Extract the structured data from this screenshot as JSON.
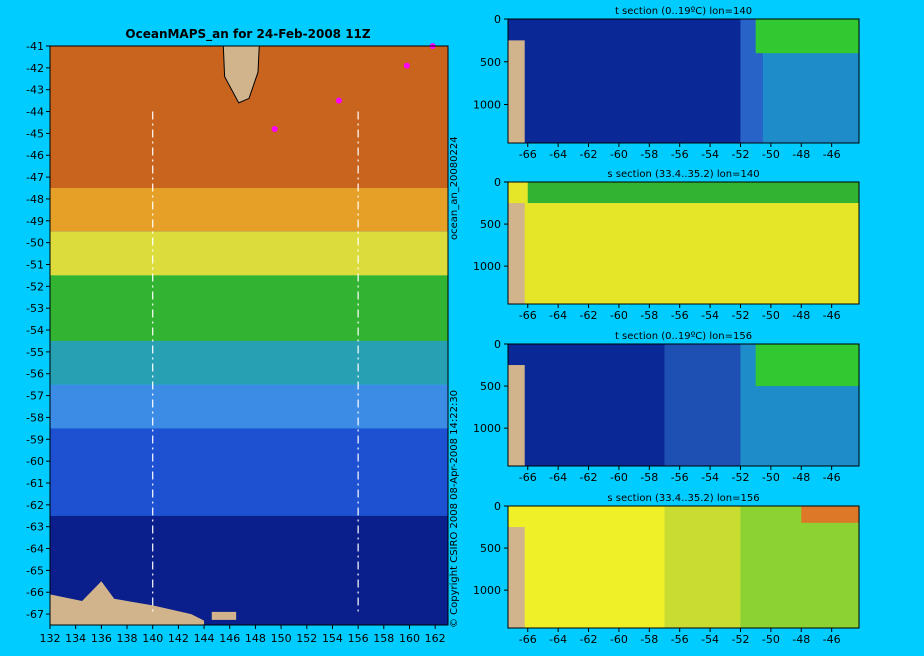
{
  "main_title": "OceanMAPS_an for 24-Feb-2008 11Z",
  "side_label_top": "ocean_an_20080224",
  "side_label_bottom": "© Copyright CSIRO 2008   08-Apr-2008 14:22:30",
  "colors": {
    "background": "#00ccff",
    "land": "#d2b48c",
    "contour": "#40e0d0",
    "highlight": "#ff00ff",
    "section_line": "#ffffff"
  },
  "chart_data": [
    {
      "type": "heatmap",
      "title": "OceanMAPS_an for 24-Feb-2008 11Z",
      "xlabel": "",
      "ylabel": "",
      "xlim": [
        132,
        163
      ],
      "ylim": [
        -67.5,
        -41
      ],
      "xticks": [
        132,
        134,
        136,
        138,
        140,
        142,
        144,
        146,
        148,
        150,
        152,
        154,
        156,
        158,
        160,
        162
      ],
      "yticks": [
        -41,
        -42,
        -43,
        -44,
        -45,
        -46,
        -47,
        -48,
        -49,
        -50,
        -51,
        -52,
        -53,
        -54,
        -55,
        -56,
        -57,
        -58,
        -59,
        -60,
        -61,
        -62,
        -63,
        -64,
        -65,
        -66,
        -67
      ],
      "section_lines_lon": [
        140,
        156
      ],
      "lat_bands": [
        {
          "lat_from": -41,
          "lat_to": -47.5,
          "color": "#c8641e"
        },
        {
          "lat_from": -47.5,
          "lat_to": -49.5,
          "color": "#e6a028"
        },
        {
          "lat_from": -49.5,
          "lat_to": -51.5,
          "color": "#dcdc3c"
        },
        {
          "lat_from": -51.5,
          "lat_to": -54.5,
          "color": "#32b432"
        },
        {
          "lat_from": -54.5,
          "lat_to": -56.5,
          "color": "#28a0b4"
        },
        {
          "lat_from": -56.5,
          "lat_to": -58.5,
          "color": "#3c8ce6"
        },
        {
          "lat_from": -58.5,
          "lat_to": -62.5,
          "color": "#1e50d2"
        },
        {
          "lat_from": -62.5,
          "lat_to": -67.5,
          "color": "#0a1e8c"
        }
      ]
    },
    {
      "type": "heatmap",
      "title": "t section (0..19ºC) lon=140",
      "xticks": [
        -66,
        -64,
        -62,
        -60,
        -58,
        -56,
        -54,
        -52,
        -50,
        -48,
        -46
      ],
      "yticks": [
        0,
        500,
        1000
      ],
      "xlim": [
        -67.3,
        -44.2
      ],
      "ylim": [
        1450,
        0
      ],
      "bands": [
        {
          "x_from": -67.3,
          "x_to": -52,
          "color": "#0a2896"
        },
        {
          "x_from": -52,
          "x_to": -50.5,
          "color": "#2864c8"
        },
        {
          "x_from": -50.5,
          "x_to": -44.2,
          "color": "#1e8cc8"
        }
      ],
      "surface": {
        "x_from": -51,
        "x_to": -44.2,
        "color": "#32c832",
        "depth_to": 400
      }
    },
    {
      "type": "heatmap",
      "title": "s section (33.4..35.2) lon=140",
      "xticks": [
        -66,
        -64,
        -62,
        -60,
        -58,
        -56,
        -54,
        -52,
        -50,
        -48,
        -46
      ],
      "yticks": [
        0,
        500,
        1000
      ],
      "xlim": [
        -67.3,
        -44.2
      ],
      "ylim": [
        1450,
        0
      ],
      "bands": [
        {
          "x_from": -67.3,
          "x_to": -44.2,
          "color": "#e6e628"
        }
      ],
      "surface": {
        "x_from": -66,
        "x_to": -44.2,
        "color": "#32b432",
        "depth_to": 250
      }
    },
    {
      "type": "heatmap",
      "title": "t section (0..19ºC) lon=156",
      "xticks": [
        -66,
        -64,
        -62,
        -60,
        -58,
        -56,
        -54,
        -52,
        -50,
        -48,
        -46
      ],
      "yticks": [
        0,
        500,
        1000
      ],
      "xlim": [
        -67.3,
        -44.2
      ],
      "ylim": [
        1450,
        0
      ],
      "bands": [
        {
          "x_from": -67.3,
          "x_to": -57,
          "color": "#0a2896"
        },
        {
          "x_from": -57,
          "x_to": -52,
          "color": "#1e50b4"
        },
        {
          "x_from": -52,
          "x_to": -44.2,
          "color": "#1e8cc8"
        }
      ],
      "surface": {
        "x_from": -51,
        "x_to": -44.2,
        "color": "#32c832",
        "depth_to": 500
      }
    },
    {
      "type": "heatmap",
      "title": "s section (33.4..35.2) lon=156",
      "xticks": [
        -66,
        -64,
        -62,
        -60,
        -58,
        -56,
        -54,
        -52,
        -50,
        -48,
        -46
      ],
      "yticks": [
        0,
        500,
        1000
      ],
      "xlim": [
        -67.3,
        -44.2
      ],
      "ylim": [
        1450,
        0
      ],
      "bands": [
        {
          "x_from": -67.3,
          "x_to": -57,
          "color": "#f0f028"
        },
        {
          "x_from": -57,
          "x_to": -52,
          "color": "#c8dc32"
        },
        {
          "x_from": -52,
          "x_to": -44.2,
          "color": "#8cd232"
        }
      ],
      "surface": {
        "x_from": -48,
        "x_to": -44.2,
        "color": "#dc7828",
        "depth_to": 200
      }
    }
  ]
}
